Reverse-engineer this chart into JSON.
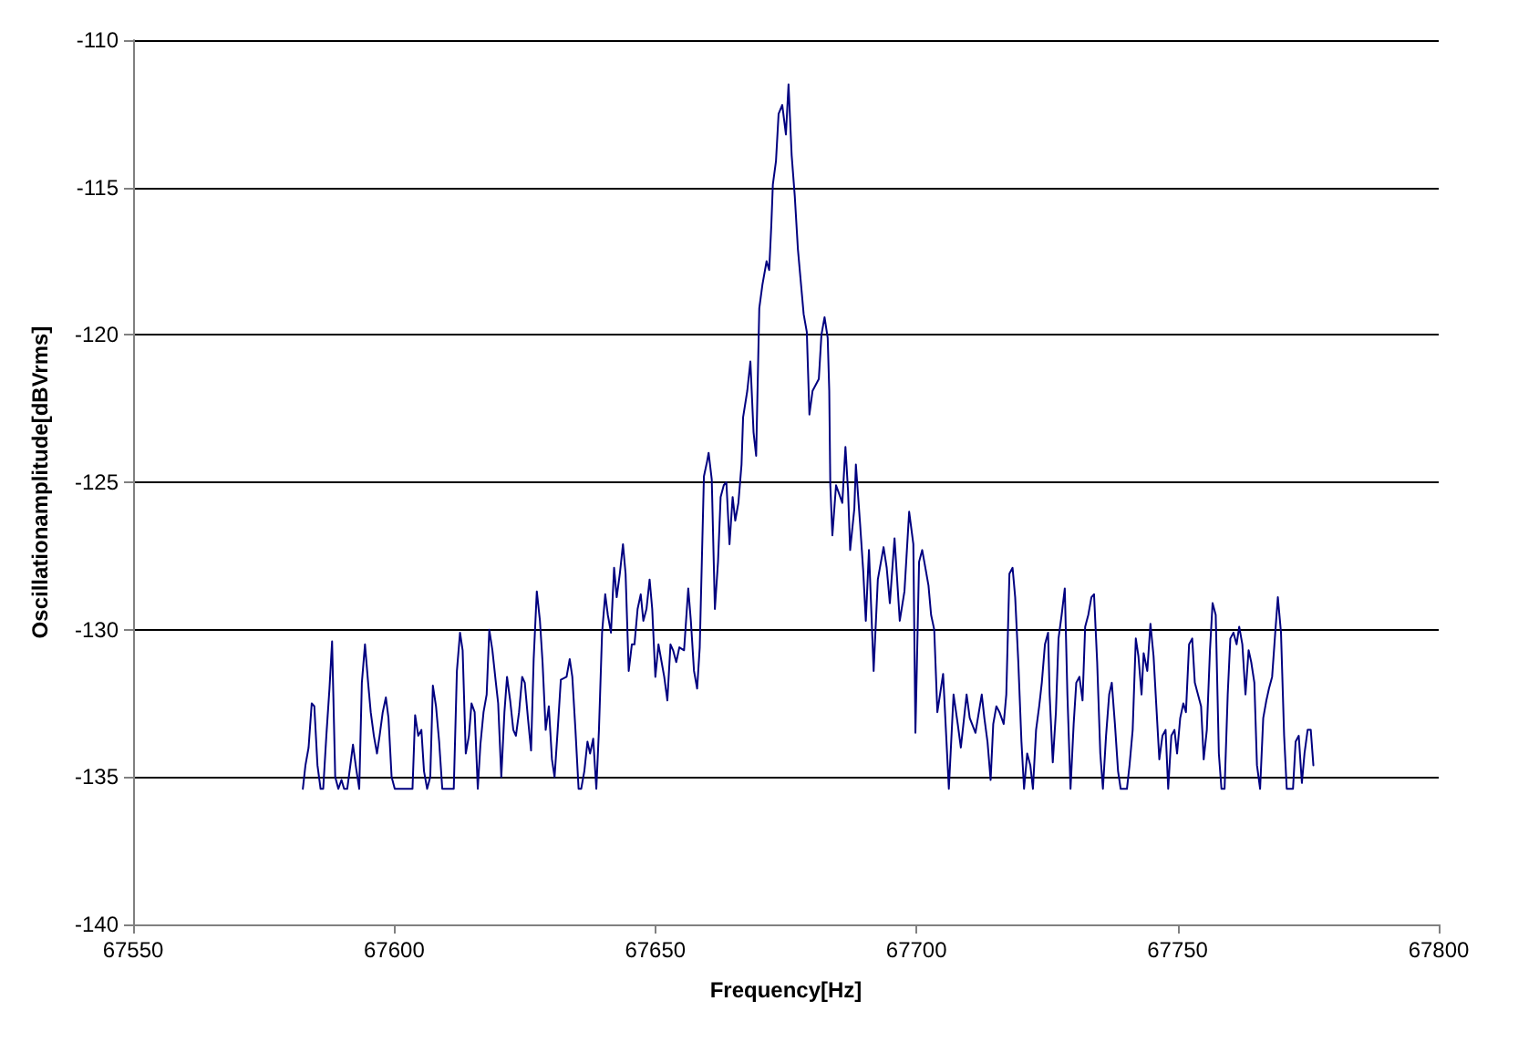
{
  "chart_data": {
    "type": "line",
    "xlabel": "Frequency[Hz]",
    "ylabel": "Oscillationamplitude[dBVrms]",
    "xlim": [
      67550,
      67800
    ],
    "xticks": [
      67550,
      67600,
      67650,
      67700,
      67750,
      67800
    ],
    "ylim": [
      -140,
      -110
    ],
    "yticks": [
      -140,
      -135,
      -130,
      -125,
      -120,
      -115,
      -110
    ],
    "grid": "y",
    "marker": "none",
    "line_style": "solid",
    "series": [
      {
        "color": "#000080",
        "x": [
          67582.5,
          67583.0,
          67583.6,
          67584.2,
          67584.7,
          67585.3,
          67585.9,
          67586.4,
          67587.0,
          67587.6,
          67588.1,
          67588.7,
          67589.3,
          67589.9,
          67590.4,
          67591.0,
          67591.6,
          67592.1,
          67592.7,
          67593.3,
          67593.8,
          67594.4,
          67595.0,
          67595.5,
          67596.1,
          67596.7,
          67597.2,
          67597.8,
          67598.4,
          67598.9,
          67599.5,
          67600.1,
          67603.5,
          67604.0,
          67604.6,
          67605.2,
          67605.7,
          67606.3,
          67606.9,
          67607.4,
          67608.0,
          67608.6,
          67609.2,
          67611.4,
          67612.0,
          67612.6,
          67613.1,
          67613.7,
          67614.3,
          67614.8,
          67615.4,
          67616.0,
          67616.5,
          67617.1,
          67617.7,
          67618.2,
          67618.8,
          67619.4,
          67619.9,
          67620.5,
          67621.1,
          67621.6,
          67622.2,
          67622.8,
          67623.3,
          67623.9,
          67624.5,
          67625.0,
          67625.6,
          67626.2,
          67626.7,
          67627.3,
          67627.9,
          67628.4,
          67629.0,
          67629.6,
          67630.2,
          67630.7,
          67631.3,
          67631.9,
          67633.0,
          67633.6,
          67634.1,
          67634.7,
          67635.3,
          67635.8,
          67636.4,
          67637.0,
          67637.5,
          67638.1,
          67638.7,
          67639.2,
          67639.8,
          67640.4,
          67640.9,
          67641.5,
          67642.1,
          67642.6,
          67643.2,
          67643.8,
          67644.3,
          67644.9,
          67645.5,
          67646.0,
          67646.6,
          67647.2,
          67647.7,
          67648.3,
          67648.9,
          67649.4,
          67650.0,
          67650.6,
          67651.2,
          67651.7,
          67652.3,
          67652.9,
          67653.4,
          67654.0,
          67654.6,
          67655.5,
          67656.3,
          67656.8,
          67657.4,
          67658.0,
          67658.5,
          67658.9,
          67659.3,
          67659.9,
          67660.2,
          67660.8,
          67661.4,
          67662.0,
          67662.5,
          67663.1,
          67663.6,
          67664.2,
          67664.8,
          67665.3,
          67665.9,
          67666.5,
          67666.8,
          67667.6,
          67668.2,
          67668.8,
          67669.3,
          67669.9,
          67670.5,
          67671.3,
          67671.8,
          67672.2,
          67672.5,
          67673.1,
          67673.6,
          67674.3,
          67675.0,
          67675.5,
          67676.1,
          67676.7,
          67677.3,
          67677.8,
          67678.4,
          67679.0,
          67679.5,
          67680.1,
          67680.7,
          67681.3,
          67681.8,
          67682.4,
          67683.0,
          67683.3,
          67683.5,
          67683.9,
          67684.6,
          67685.2,
          67685.8,
          67686.4,
          67686.9,
          67687.3,
          67688.1,
          67688.4,
          67689.2,
          67689.8,
          67690.3,
          67690.9,
          67691.8,
          67692.6,
          67693.7,
          67694.3,
          67694.9,
          67695.8,
          67696.8,
          67697.7,
          67698.6,
          67699.4,
          67699.8,
          67700.5,
          67701.1,
          67702.3,
          67702.8,
          67703.4,
          67704.0,
          67705.1,
          67706.2,
          67707.1,
          67707.9,
          67708.5,
          67709.6,
          67710.2,
          67711.3,
          67712.5,
          67713.0,
          67713.6,
          67714.2,
          67714.7,
          67715.3,
          67715.9,
          67716.7,
          67717.2,
          67717.8,
          67718.4,
          67718.9,
          67719.5,
          67720.1,
          67720.6,
          67721.2,
          67721.8,
          67722.3,
          67722.9,
          67723.5,
          67724.0,
          67724.6,
          67725.2,
          67725.5,
          67726.1,
          67726.7,
          67727.2,
          67727.8,
          67728.4,
          67728.9,
          67729.5,
          67730.1,
          67730.6,
          67731.2,
          67731.8,
          67732.3,
          67732.9,
          67733.5,
          67734.0,
          67734.6,
          67735.2,
          67735.7,
          67736.3,
          67736.9,
          67737.4,
          67738.0,
          67738.6,
          67739.1,
          67740.3,
          67740.8,
          67741.4,
          67742.0,
          67742.5,
          67743.1,
          67743.5,
          67744.2,
          67744.8,
          67745.4,
          67745.9,
          67746.5,
          67747.1,
          67747.7,
          67748.2,
          67748.8,
          67749.4,
          67749.9,
          67750.5,
          67751.1,
          67751.6,
          67752.2,
          67752.8,
          67753.3,
          67753.9,
          67754.5,
          67755.0,
          67755.6,
          67756.2,
          67756.7,
          67757.3,
          67757.9,
          67758.4,
          67759.0,
          67759.6,
          67760.1,
          67760.7,
          67761.3,
          67761.8,
          67762.4,
          67763.0,
          67763.6,
          67764.1,
          67764.7,
          67765.2,
          67765.8,
          67766.4,
          67767.0,
          67767.5,
          67768.1,
          67768.7,
          67769.2,
          67769.8,
          67770.4,
          67770.9,
          67772.1,
          67772.6,
          67773.2,
          67773.8,
          67774.3,
          67774.9,
          67775.5,
          67776.0
        ],
        "values": [
          -135.4,
          -134.6,
          -134.0,
          -132.5,
          -132.6,
          -134.6,
          -135.4,
          -135.4,
          -133.6,
          -132.0,
          -130.4,
          -135.0,
          -135.4,
          -135.1,
          -135.4,
          -135.4,
          -134.6,
          -133.9,
          -134.7,
          -135.4,
          -131.8,
          -130.5,
          -131.8,
          -132.8,
          -133.6,
          -134.2,
          -133.6,
          -132.8,
          -132.3,
          -133.0,
          -135.0,
          -135.4,
          -135.4,
          -132.9,
          -133.6,
          -133.4,
          -134.8,
          -135.4,
          -135.0,
          -131.9,
          -132.6,
          -133.8,
          -135.4,
          -135.4,
          -131.4,
          -130.1,
          -130.7,
          -134.2,
          -133.6,
          -132.5,
          -132.8,
          -135.4,
          -133.9,
          -132.8,
          -132.2,
          -130.0,
          -130.7,
          -131.7,
          -132.5,
          -135.0,
          -132.8,
          -131.6,
          -132.4,
          -133.4,
          -133.6,
          -132.8,
          -131.6,
          -131.8,
          -133.0,
          -134.1,
          -131.0,
          -128.7,
          -129.7,
          -131.1,
          -133.4,
          -132.6,
          -134.4,
          -135.0,
          -133.4,
          -131.7,
          -131.6,
          -131.0,
          -131.6,
          -133.4,
          -135.4,
          -135.4,
          -134.8,
          -133.8,
          -134.2,
          -133.7,
          -135.4,
          -133.4,
          -130.1,
          -128.8,
          -129.5,
          -130.1,
          -127.9,
          -128.9,
          -128.1,
          -127.1,
          -128.1,
          -131.4,
          -130.5,
          -130.5,
          -129.3,
          -128.8,
          -129.7,
          -129.3,
          -128.3,
          -129.3,
          -131.6,
          -130.5,
          -131.1,
          -131.6,
          -132.4,
          -130.5,
          -130.7,
          -131.1,
          -130.6,
          -130.7,
          -128.6,
          -129.7,
          -131.4,
          -132.0,
          -130.6,
          -127.7,
          -124.8,
          -124.3,
          -124.0,
          -124.9,
          -129.3,
          -127.7,
          -125.5,
          -125.1,
          -125.0,
          -127.1,
          -125.5,
          -126.3,
          -125.7,
          -124.4,
          -122.8,
          -121.9,
          -120.9,
          -123.3,
          -124.1,
          -119.1,
          -118.3,
          -117.5,
          -117.8,
          -116.3,
          -114.9,
          -114.1,
          -112.5,
          -112.2,
          -113.2,
          -111.5,
          -113.9,
          -115.3,
          -117.1,
          -118.1,
          -119.3,
          -119.9,
          -122.7,
          -121.9,
          -121.7,
          -121.5,
          -120.0,
          -119.4,
          -120.1,
          -121.9,
          -125.1,
          -126.8,
          -125.1,
          -125.4,
          -125.7,
          -123.8,
          -125.3,
          -127.3,
          -125.9,
          -124.4,
          -126.4,
          -128.0,
          -129.7,
          -127.3,
          -131.4,
          -128.3,
          -127.2,
          -127.9,
          -129.1,
          -126.9,
          -129.7,
          -128.7,
          -126.0,
          -127.1,
          -133.5,
          -127.7,
          -127.3,
          -128.5,
          -129.5,
          -130.0,
          -132.8,
          -131.5,
          -135.4,
          -132.2,
          -133.2,
          -134.0,
          -132.2,
          -133.0,
          -133.5,
          -132.2,
          -133.0,
          -133.8,
          -135.1,
          -133.2,
          -132.6,
          -132.8,
          -133.2,
          -132.2,
          -128.1,
          -127.9,
          -128.9,
          -131.1,
          -133.8,
          -135.4,
          -134.2,
          -134.6,
          -135.4,
          -133.4,
          -132.6,
          -131.8,
          -130.5,
          -130.1,
          -132.2,
          -134.5,
          -132.8,
          -130.3,
          -129.5,
          -128.6,
          -132.2,
          -135.4,
          -133.2,
          -131.8,
          -131.6,
          -132.4,
          -129.9,
          -129.5,
          -128.9,
          -128.8,
          -131.1,
          -134.2,
          -135.4,
          -133.6,
          -132.2,
          -131.8,
          -133.2,
          -134.8,
          -135.4,
          -135.4,
          -134.6,
          -133.4,
          -130.3,
          -130.9,
          -132.2,
          -130.8,
          -131.4,
          -129.8,
          -130.9,
          -132.5,
          -134.4,
          -133.6,
          -133.4,
          -135.4,
          -133.6,
          -133.4,
          -134.2,
          -133.0,
          -132.5,
          -132.8,
          -130.5,
          -130.3,
          -131.8,
          -132.2,
          -132.6,
          -134.4,
          -133.4,
          -130.7,
          -129.1,
          -129.5,
          -134.2,
          -135.4,
          -135.4,
          -132.2,
          -130.3,
          -130.1,
          -130.5,
          -129.9,
          -130.5,
          -132.2,
          -130.7,
          -131.1,
          -131.8,
          -134.6,
          -135.4,
          -133.0,
          -132.4,
          -132.0,
          -131.6,
          -130.1,
          -128.9,
          -130.1,
          -133.6,
          -135.4,
          -135.4,
          -133.8,
          -133.6,
          -135.2,
          -134.2,
          -133.4,
          -133.4,
          -134.6
        ]
      }
    ]
  }
}
